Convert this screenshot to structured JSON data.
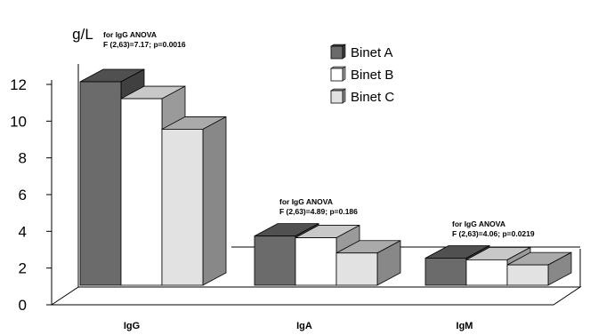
{
  "chart_data": {
    "type": "bar",
    "style": "3d",
    "ylabel": "g/L",
    "ylim": [
      0,
      12
    ],
    "yticks": [
      "0",
      "2",
      "4",
      "6",
      "8",
      "10",
      "12"
    ],
    "categories": [
      "IgG",
      "IgA",
      "IgM"
    ],
    "series": [
      {
        "name": "Binet A",
        "values": [
          12.0,
          2.9,
          1.6
        ],
        "color": "#6b6b6b"
      },
      {
        "name": "Binet B",
        "values": [
          11.0,
          2.8,
          1.5
        ],
        "color": "#ffffff"
      },
      {
        "name": "Binet C",
        "values": [
          9.2,
          1.9,
          1.2
        ],
        "color": "#e2e2e2"
      }
    ],
    "annotations": [
      {
        "line1": "for IgG ANOVA",
        "line2": "F (2,63)=7.17; p=0.0016"
      },
      {
        "line1": "for IgG ANOVA",
        "line2": "F (2,63)=4.89; p=0.186"
      },
      {
        "line1": "for IgG ANOVA",
        "line2": "F (2,63)=4.06; p=0.0219"
      }
    ],
    "legend_position": "top-right",
    "grid": false
  }
}
